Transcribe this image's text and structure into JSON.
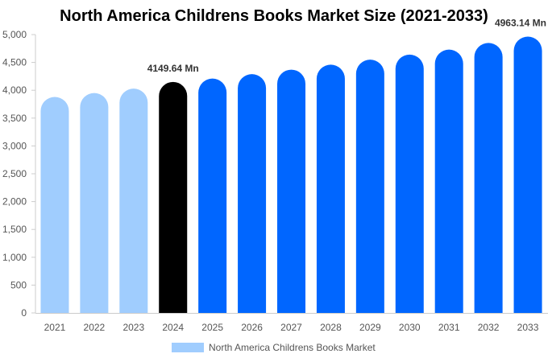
{
  "chart_data": {
    "type": "bar",
    "title": "North America Childrens Books Market Size (2021-2033)",
    "xlabel": "",
    "ylabel": "",
    "categories": [
      "2021",
      "2022",
      "2023",
      "2024",
      "2025",
      "2026",
      "2027",
      "2028",
      "2029",
      "2030",
      "2031",
      "2032",
      "2033"
    ],
    "series": [
      {
        "name": "North America Childrens Books Market",
        "values": [
          3880,
          3950,
          4030,
          4149.64,
          4210,
          4290,
          4370,
          4460,
          4550,
          4640,
          4730,
          4850,
          4963.14
        ]
      }
    ],
    "ylim": [
      0,
      5000
    ],
    "yticks": [
      0,
      500,
      1000,
      1500,
      2000,
      2500,
      3000,
      3500,
      4000,
      4500,
      5000
    ],
    "ytick_labels": [
      "0",
      "500",
      "1,000",
      "1,500",
      "2,000",
      "2,500",
      "3,000",
      "3,500",
      "4,000",
      "4,500",
      "5,000"
    ],
    "data_labels": [
      {
        "category": "2024",
        "text": "4149.64 Mn"
      },
      {
        "category": "2033",
        "text": "4963.14 Mn"
      }
    ],
    "bar_colors": {
      "historical": "#a0cdfe",
      "base_year": "#000000",
      "forecast": "#0066ff"
    },
    "base_year": "2024",
    "legend_position": "bottom",
    "grid": false
  }
}
